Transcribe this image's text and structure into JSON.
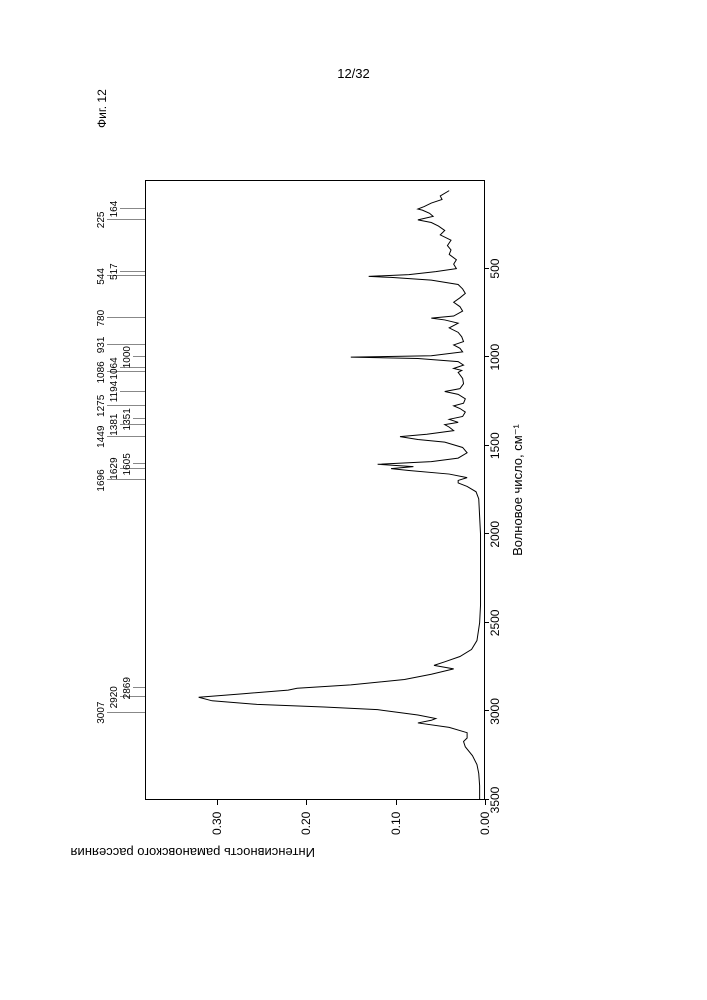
{
  "page_number": "12/32",
  "figure_label": "Фиг. 12",
  "chart": {
    "type": "line",
    "xlabel": "Волновое число, см⁻¹",
    "ylabel": "Интенсивность рамановского рассеяния",
    "xlim": [
      3500,
      0
    ],
    "ylim": [
      0.0,
      0.38
    ],
    "xtick_step": 500,
    "xticks": [
      3500,
      3000,
      2500,
      2000,
      1500,
      1000,
      500
    ],
    "yticks": [
      0.0,
      0.1,
      0.2,
      0.3
    ],
    "ytick_labels": [
      "0.00",
      "0.10",
      "0.20",
      "0.30"
    ],
    "background_color": "#ffffff",
    "line_color": "#000000",
    "line_width": 1,
    "grid": false,
    "label_fontsize": 13,
    "tick_fontsize": 12,
    "peak_label_fontsize": 10,
    "peak_labels": [
      3007,
      2920,
      2869,
      1696,
      1629,
      1605,
      1449,
      1381,
      1351,
      1275,
      1194,
      1086,
      1064,
      1000,
      931,
      780,
      544,
      517,
      225,
      164
    ],
    "peak_intensities": {
      "3007": 0.095,
      "2920": 0.32,
      "2869": 0.21,
      "1696": 0.03,
      "1629": 0.105,
      "1605": 0.12,
      "1449": 0.095,
      "1381": 0.045,
      "1351": 0.04,
      "1275": 0.035,
      "1194": 0.045,
      "1086": 0.03,
      "1064": 0.035,
      "1000": 0.15,
      "931": 0.035,
      "780": 0.06,
      "544": 0.13,
      "517": 0.055,
      "225": 0.075,
      "164": 0.075
    },
    "spectrum_points": [
      [
        3500,
        0.006
      ],
      [
        3420,
        0.006
      ],
      [
        3350,
        0.007
      ],
      [
        3300,
        0.009
      ],
      [
        3250,
        0.014
      ],
      [
        3200,
        0.022
      ],
      [
        3170,
        0.024
      ],
      [
        3150,
        0.02
      ],
      [
        3120,
        0.02
      ],
      [
        3090,
        0.04
      ],
      [
        3065,
        0.075
      ],
      [
        3050,
        0.06
      ],
      [
        3040,
        0.055
      ],
      [
        3020,
        0.075
      ],
      [
        3007,
        0.095
      ],
      [
        2990,
        0.12
      ],
      [
        2975,
        0.18
      ],
      [
        2960,
        0.255
      ],
      [
        2940,
        0.305
      ],
      [
        2920,
        0.32
      ],
      [
        2900,
        0.27
      ],
      [
        2880,
        0.22
      ],
      [
        2869,
        0.21
      ],
      [
        2850,
        0.15
      ],
      [
        2820,
        0.09
      ],
      [
        2790,
        0.06
      ],
      [
        2760,
        0.035
      ],
      [
        2740,
        0.057
      ],
      [
        2720,
        0.045
      ],
      [
        2690,
        0.028
      ],
      [
        2650,
        0.015
      ],
      [
        2600,
        0.009
      ],
      [
        2500,
        0.006
      ],
      [
        2400,
        0.005
      ],
      [
        2300,
        0.005
      ],
      [
        2200,
        0.005
      ],
      [
        2100,
        0.005
      ],
      [
        2000,
        0.005
      ],
      [
        1900,
        0.006
      ],
      [
        1800,
        0.007
      ],
      [
        1760,
        0.01
      ],
      [
        1730,
        0.02
      ],
      [
        1710,
        0.03
      ],
      [
        1696,
        0.03
      ],
      [
        1680,
        0.02
      ],
      [
        1660,
        0.04
      ],
      [
        1640,
        0.085
      ],
      [
        1629,
        0.105
      ],
      [
        1618,
        0.08
      ],
      [
        1605,
        0.12
      ],
      [
        1590,
        0.06
      ],
      [
        1570,
        0.03
      ],
      [
        1540,
        0.02
      ],
      [
        1510,
        0.025
      ],
      [
        1480,
        0.045
      ],
      [
        1465,
        0.075
      ],
      [
        1449,
        0.095
      ],
      [
        1435,
        0.065
      ],
      [
        1415,
        0.035
      ],
      [
        1395,
        0.04
      ],
      [
        1381,
        0.045
      ],
      [
        1368,
        0.03
      ],
      [
        1351,
        0.04
      ],
      [
        1335,
        0.025
      ],
      [
        1310,
        0.022
      ],
      [
        1290,
        0.028
      ],
      [
        1275,
        0.035
      ],
      [
        1260,
        0.024
      ],
      [
        1235,
        0.022
      ],
      [
        1210,
        0.03
      ],
      [
        1194,
        0.045
      ],
      [
        1178,
        0.028
      ],
      [
        1150,
        0.024
      ],
      [
        1120,
        0.025
      ],
      [
        1100,
        0.028
      ],
      [
        1086,
        0.03
      ],
      [
        1075,
        0.026
      ],
      [
        1064,
        0.035
      ],
      [
        1045,
        0.024
      ],
      [
        1025,
        0.03
      ],
      [
        1008,
        0.075
      ],
      [
        1000,
        0.15
      ],
      [
        992,
        0.06
      ],
      [
        970,
        0.025
      ],
      [
        950,
        0.028
      ],
      [
        931,
        0.035
      ],
      [
        912,
        0.024
      ],
      [
        885,
        0.026
      ],
      [
        860,
        0.03
      ],
      [
        835,
        0.04
      ],
      [
        808,
        0.03
      ],
      [
        790,
        0.045
      ],
      [
        780,
        0.06
      ],
      [
        768,
        0.035
      ],
      [
        740,
        0.025
      ],
      [
        715,
        0.028
      ],
      [
        690,
        0.035
      ],
      [
        665,
        0.028
      ],
      [
        640,
        0.022
      ],
      [
        615,
        0.025
      ],
      [
        590,
        0.03
      ],
      [
        565,
        0.06
      ],
      [
        550,
        0.105
      ],
      [
        544,
        0.13
      ],
      [
        534,
        0.085
      ],
      [
        517,
        0.055
      ],
      [
        500,
        0.032
      ],
      [
        475,
        0.035
      ],
      [
        450,
        0.032
      ],
      [
        420,
        0.04
      ],
      [
        395,
        0.038
      ],
      [
        370,
        0.042
      ],
      [
        340,
        0.038
      ],
      [
        310,
        0.05
      ],
      [
        285,
        0.045
      ],
      [
        260,
        0.052
      ],
      [
        240,
        0.06
      ],
      [
        225,
        0.075
      ],
      [
        205,
        0.058
      ],
      [
        188,
        0.062
      ],
      [
        170,
        0.07
      ],
      [
        164,
        0.075
      ],
      [
        150,
        0.068
      ],
      [
        130,
        0.06
      ],
      [
        110,
        0.048
      ],
      [
        90,
        0.05
      ],
      [
        60,
        0.04
      ]
    ]
  }
}
